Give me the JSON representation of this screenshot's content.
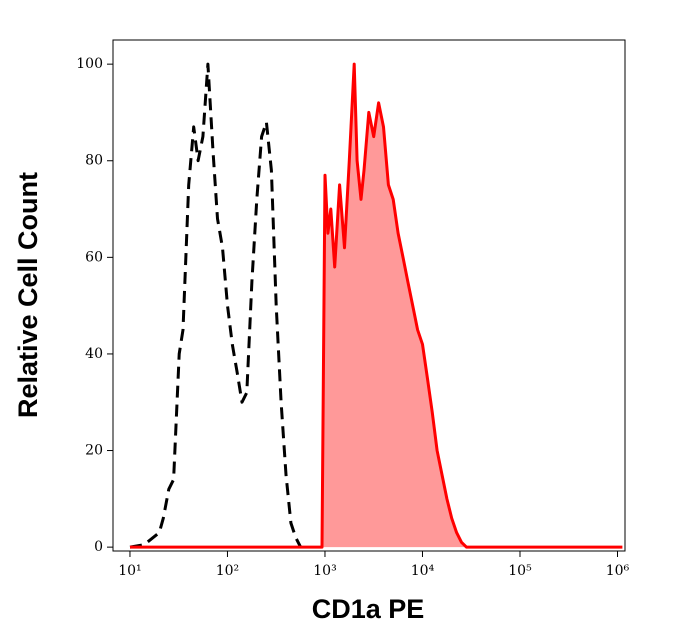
{
  "chart_data": {
    "type": "line",
    "xlabel": "CD1a PE",
    "ylabel": "Relative Cell Count",
    "xscale": "log",
    "xlim": [
      6.7,
      1194000
    ],
    "ylim": [
      -0.8,
      105
    ],
    "xticks": [
      {
        "value": 10,
        "label": "10¹"
      },
      {
        "value": 100,
        "label": "10²"
      },
      {
        "value": 1000,
        "label": "10³"
      },
      {
        "value": 10000,
        "label": "10⁴"
      },
      {
        "value": 100000,
        "label": "10⁵"
      },
      {
        "value": 1000000,
        "label": "10⁶"
      }
    ],
    "yticks": [
      0,
      20,
      40,
      60,
      80,
      100
    ],
    "series": [
      {
        "color": "#000000",
        "style": "dashed",
        "x": [
          10,
          14,
          20,
          22,
          25,
          28,
          32,
          35,
          40,
          45,
          50,
          56,
          63,
          71,
          79,
          89,
          100,
          112,
          126,
          141,
          158,
          178,
          200,
          224,
          251,
          282,
          316,
          355,
          398,
          447,
          501,
          562
        ],
        "values": [
          0,
          0.5,
          3,
          6,
          12,
          14,
          40,
          45,
          75,
          87,
          80,
          85,
          100,
          82,
          68,
          62,
          50,
          42,
          36,
          30,
          32,
          55,
          72,
          85,
          88,
          78,
          50,
          30,
          15,
          5,
          2,
          0
        ]
      },
      {
        "color": "#ff0000",
        "fill": "#ff9999",
        "style": "solid",
        "x": [
          10,
          933,
          1000,
          1072,
          1148,
          1259,
          1413,
          1585,
          1778,
          1995,
          2138,
          2344,
          2512,
          2818,
          3162,
          3548,
          3981,
          4467,
          5012,
          5623,
          6310,
          7079,
          7943,
          8913,
          10000,
          11220,
          12589,
          14125,
          15849,
          17783,
          19953,
          22387,
          25119,
          28184,
          1122018
        ],
        "values": [
          0,
          0,
          77,
          65,
          70,
          58,
          75,
          62,
          80,
          100,
          80,
          72,
          78,
          90,
          85,
          92,
          87,
          75,
          72,
          65,
          60,
          55,
          50,
          45,
          42,
          35,
          28,
          20,
          15,
          10,
          6,
          3,
          1,
          0,
          0
        ]
      }
    ]
  }
}
